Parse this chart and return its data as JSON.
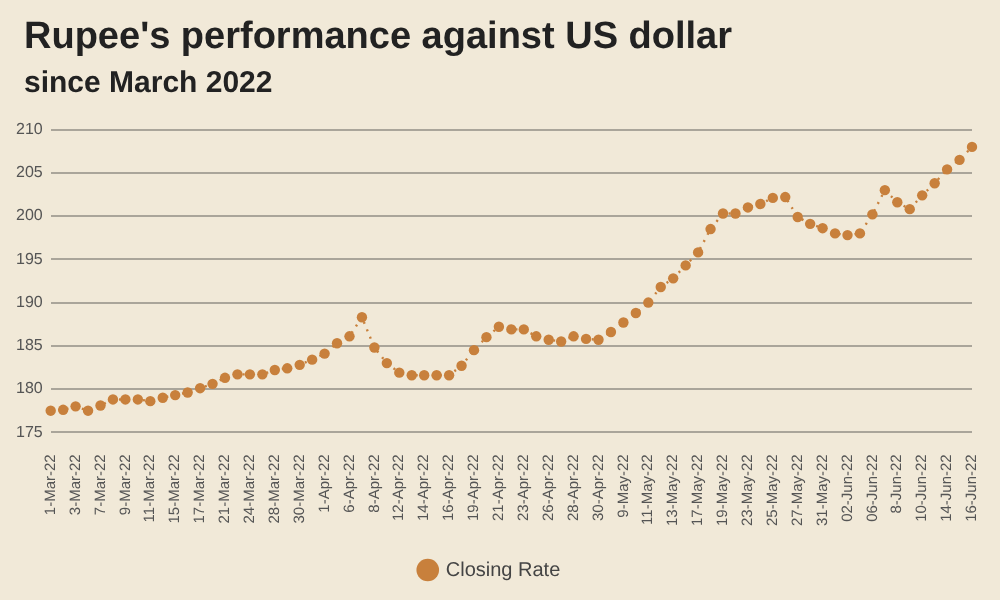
{
  "chart_data": {
    "type": "line",
    "title": "Rupee's performance against US dollar",
    "subtitle": "since March 2022",
    "categories": [
      "1-Mar-22",
      null,
      "3-Mar-22",
      null,
      "7-Mar-22",
      null,
      "9-Mar-22",
      null,
      "11-Mar-22",
      null,
      "15-Mar-22",
      null,
      "17-Mar-22",
      null,
      "21-Mar-22",
      null,
      "24-Mar-22",
      null,
      "28-Mar-22",
      null,
      "30-Mar-22",
      null,
      "1-Apr-22",
      null,
      "6-Apr-22",
      null,
      "8-Apr-22",
      null,
      "12-Apr-22",
      null,
      "14-Apr-22",
      null,
      "16-Apr-22",
      null,
      "19-Apr-22",
      null,
      "21-Apr-22",
      null,
      "23-Apr-22",
      null,
      "26-Apr-22",
      null,
      "28-Apr-22",
      null,
      "30-Apr-22",
      null,
      "9-May-22",
      null,
      "11-May-22",
      null,
      "13-May-22",
      null,
      "17-May-22",
      null,
      "19-May-22",
      null,
      "23-May-22",
      null,
      "25-May-22",
      null,
      "27-May-22",
      null,
      "31-May-22",
      null,
      "02-Jun-22",
      null,
      "06-Jun-22",
      null,
      "8-Jun-22",
      null,
      "10-Jun-22",
      null,
      "14-Jun-22",
      null,
      "16-Jun-22"
    ],
    "series": [
      {
        "name": "Closing Rate",
        "color": "#c8803c",
        "values": [
          177.5,
          177.6,
          178.0,
          177.5,
          178.1,
          178.8,
          178.8,
          178.8,
          178.6,
          179.0,
          179.3,
          179.6,
          180.1,
          180.6,
          181.3,
          181.7,
          181.7,
          181.7,
          182.2,
          182.4,
          182.8,
          183.4,
          184.1,
          185.3,
          186.1,
          188.3,
          184.8,
          183.0,
          181.9,
          181.6,
          181.6,
          181.6,
          181.6,
          182.7,
          184.5,
          186.0,
          187.2,
          186.9,
          186.9,
          186.1,
          185.7,
          185.5,
          186.1,
          185.8,
          185.7,
          186.6,
          187.7,
          188.8,
          190.0,
          191.8,
          192.8,
          194.3,
          195.8,
          198.5,
          200.3,
          200.3,
          201.0,
          201.4,
          202.1,
          202.2,
          199.9,
          199.1,
          198.6,
          198.0,
          197.8,
          198.0,
          200.2,
          203.0,
          201.6,
          200.8,
          202.4,
          203.8,
          205.4,
          206.5,
          208.0
        ]
      }
    ],
    "ylim": [
      175,
      210
    ],
    "yticks": [
      175,
      180,
      185,
      190,
      195,
      200,
      205,
      210
    ],
    "grid": "y",
    "legend": "bottom",
    "marker": "circle",
    "line_style": "dotted"
  }
}
